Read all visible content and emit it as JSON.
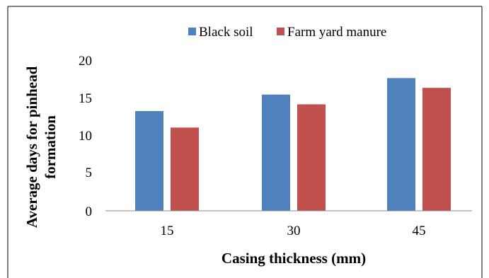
{
  "chart_data": {
    "type": "bar",
    "categories": [
      "15",
      "30",
      "45"
    ],
    "series": [
      {
        "name": "Black soil",
        "values": [
          13.3,
          15.5,
          17.7
        ],
        "color": "#4F81BD"
      },
      {
        "name": "Farm yard manure",
        "values": [
          11.1,
          14.2,
          16.4
        ],
        "color": "#C0504D"
      }
    ],
    "xlabel": "Casing thickness (mm)",
    "ylabel_line1": "Average days for pinhead",
    "ylabel_line2": "formation",
    "ylim": [
      0,
      20
    ],
    "yticks": [
      "0",
      "5",
      "10",
      "15",
      "20"
    ],
    "grid": false,
    "legend_position": "top"
  }
}
